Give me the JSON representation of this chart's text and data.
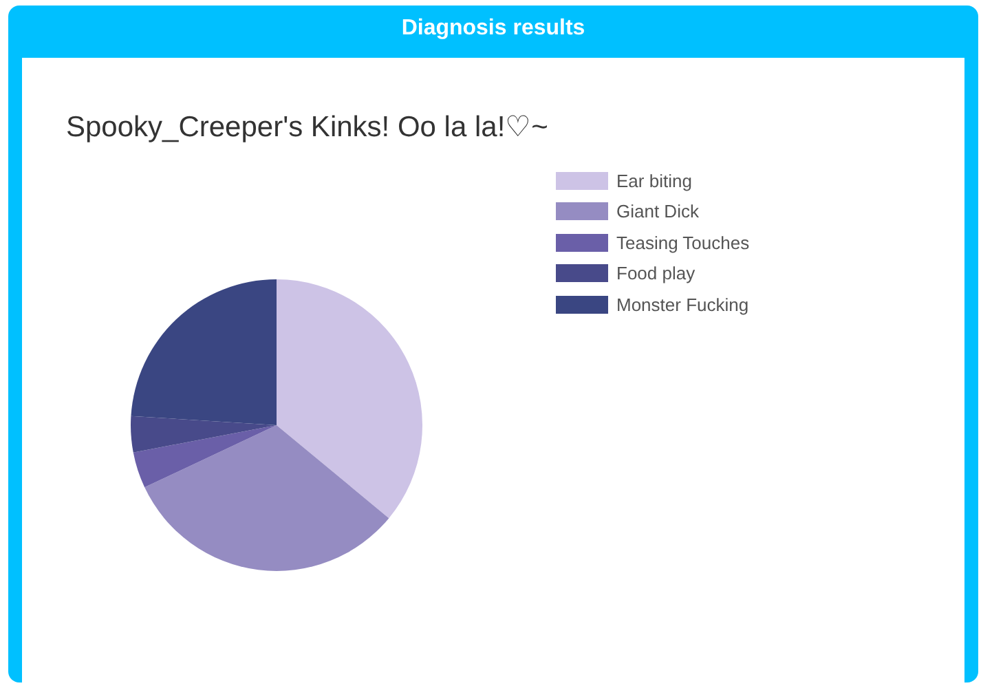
{
  "chart_data": {
    "type": "pie",
    "title": "Diagnosis results",
    "subtitle": "Spooky_Creeper's Kinks! Oo la la!♡~",
    "categories": [
      "Ear biting",
      "Giant Dick",
      "Teasing Touches",
      "Food play",
      "Monster Fucking"
    ],
    "values": [
      36,
      32,
      4,
      4,
      24
    ],
    "colors": [
      "#cdc3e6",
      "#958cc2",
      "#6a5fa8",
      "#484a8a",
      "#3a4682"
    ],
    "legend": "top right"
  }
}
